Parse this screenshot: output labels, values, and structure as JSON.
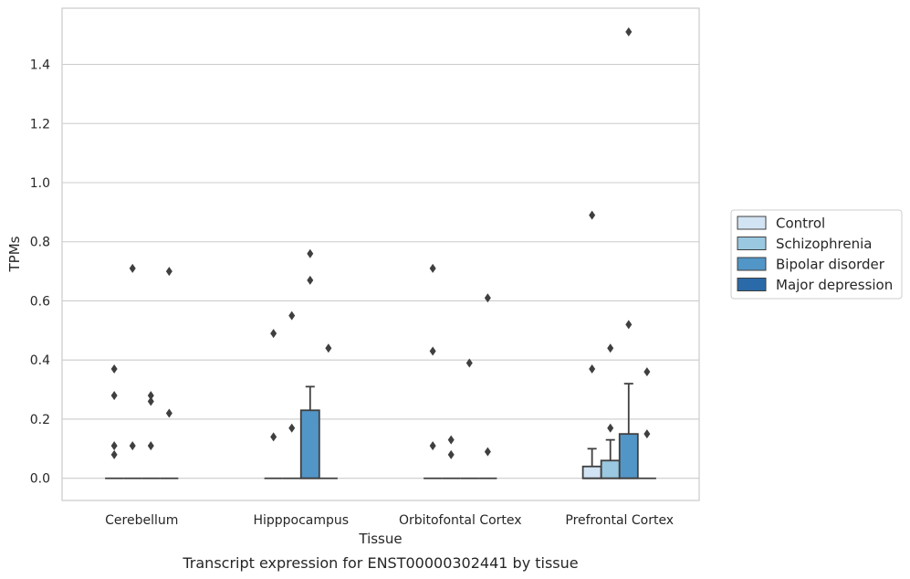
{
  "chart_data": {
    "type": "boxplot",
    "caption": "Transcript expression for ENST00000302441 by tissue",
    "xlabel": "Tissue",
    "ylabel": "TPMs",
    "ylim": [
      -0.075,
      1.59
    ],
    "yticks": [
      "0.0",
      "0.2",
      "0.4",
      "0.6",
      "0.8",
      "1.0",
      "1.2",
      "1.4"
    ],
    "categories": [
      "Cerebellum",
      "Hipppocampus",
      "Orbitofontal Cortex",
      "Prefrontal Cortex"
    ],
    "grid": true,
    "legend_position": "right",
    "series": [
      {
        "name": "Control",
        "color": "#d2e3f3",
        "boxes": [
          {
            "q1": 0,
            "median": 0,
            "q3": 0,
            "whisker_low": 0,
            "whisker_high": 0,
            "outliers": [
              0.37,
              0.28,
              0.11,
              0.08
            ]
          },
          {
            "q1": 0,
            "median": 0,
            "q3": 0,
            "whisker_low": 0,
            "whisker_high": 0,
            "outliers": [
              0.49,
              0.14
            ]
          },
          {
            "q1": 0,
            "median": 0,
            "q3": 0,
            "whisker_low": 0,
            "whisker_high": 0,
            "outliers": [
              0.71,
              0.43,
              0.11
            ]
          },
          {
            "q1": 0,
            "median": 0,
            "q3": 0.04,
            "whisker_low": 0,
            "whisker_high": 0.1,
            "outliers": [
              0.89,
              0.37
            ]
          }
        ]
      },
      {
        "name": "Schizophrenia",
        "color": "#9ac8e0",
        "boxes": [
          {
            "q1": 0,
            "median": 0,
            "q3": 0,
            "whisker_low": 0,
            "whisker_high": 0,
            "outliers": [
              0.71,
              0.11
            ]
          },
          {
            "q1": 0,
            "median": 0,
            "q3": 0,
            "whisker_low": 0,
            "whisker_high": 0,
            "outliers": [
              0.55,
              0.17
            ]
          },
          {
            "q1": 0,
            "median": 0,
            "q3": 0,
            "whisker_low": 0,
            "whisker_high": 0,
            "outliers": [
              0.13,
              0.08
            ]
          },
          {
            "q1": 0,
            "median": 0,
            "q3": 0.06,
            "whisker_low": 0,
            "whisker_high": 0.13,
            "outliers": [
              0.44,
              0.17
            ]
          }
        ]
      },
      {
        "name": "Bipolar disorder",
        "color": "#5296c7",
        "boxes": [
          {
            "q1": 0,
            "median": 0,
            "q3": 0,
            "whisker_low": 0,
            "whisker_high": 0,
            "outliers": [
              0.28,
              0.26,
              0.11
            ]
          },
          {
            "q1": 0,
            "median": 0,
            "q3": 0.23,
            "whisker_low": 0,
            "whisker_high": 0.31,
            "outliers": [
              0.76,
              0.67
            ]
          },
          {
            "q1": 0,
            "median": 0,
            "q3": 0,
            "whisker_low": 0,
            "whisker_high": 0,
            "outliers": [
              0.39
            ]
          },
          {
            "q1": 0,
            "median": 0,
            "q3": 0.15,
            "whisker_low": 0,
            "whisker_high": 0.32,
            "outliers": [
              1.51,
              0.52
            ]
          }
        ]
      },
      {
        "name": "Major depression",
        "color": "#2a6aa8",
        "boxes": [
          {
            "q1": 0,
            "median": 0,
            "q3": 0,
            "whisker_low": 0,
            "whisker_high": 0,
            "outliers": [
              0.7,
              0.22
            ]
          },
          {
            "q1": 0,
            "median": 0,
            "q3": 0,
            "whisker_low": 0,
            "whisker_high": 0,
            "outliers": [
              0.44
            ]
          },
          {
            "q1": 0,
            "median": 0,
            "q3": 0,
            "whisker_low": 0,
            "whisker_high": 0,
            "outliers": [
              0.61,
              0.09
            ]
          },
          {
            "q1": 0,
            "median": 0,
            "q3": 0,
            "whisker_low": 0,
            "whisker_high": 0,
            "outliers": [
              0.36,
              0.15
            ]
          }
        ]
      }
    ]
  }
}
